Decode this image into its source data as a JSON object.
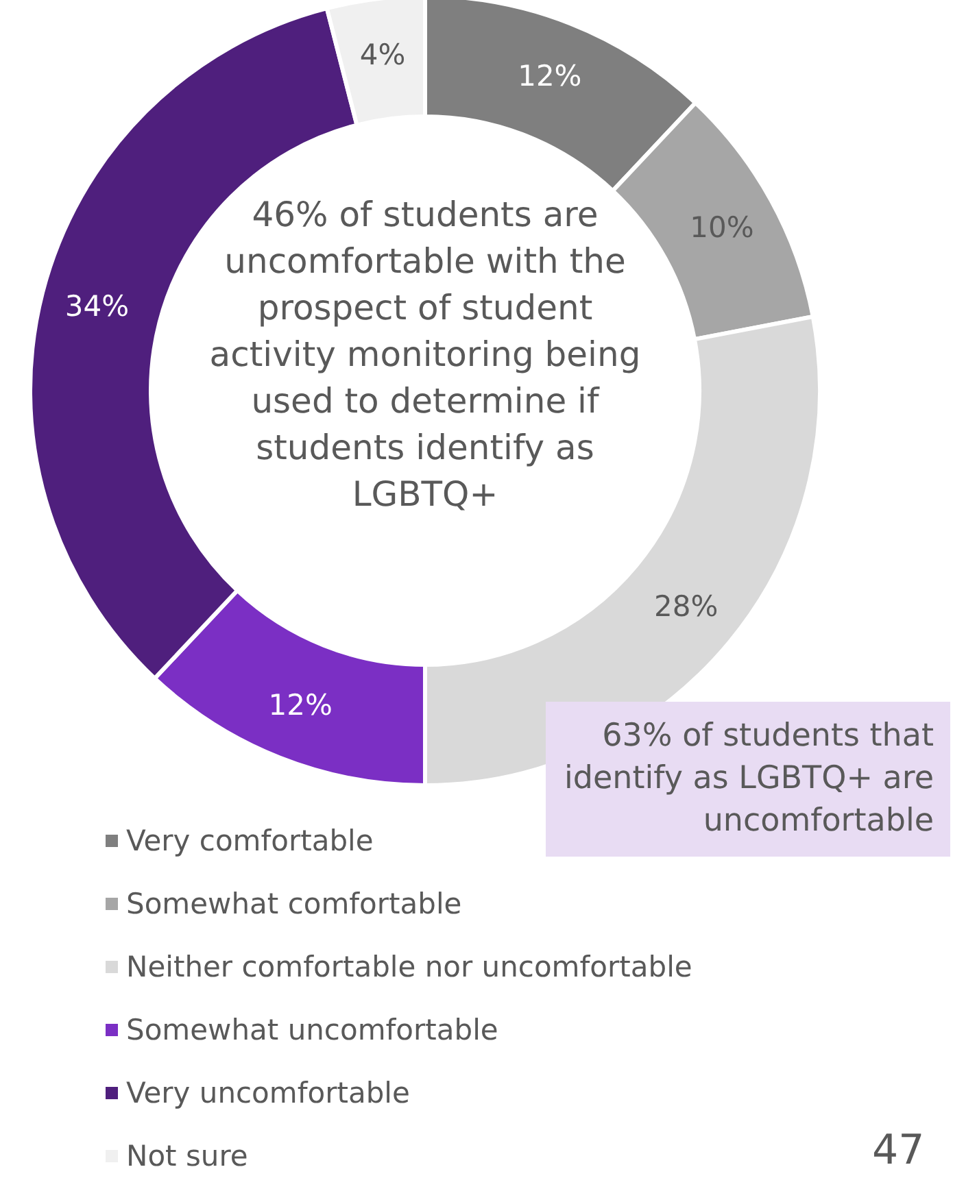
{
  "chart_data": {
    "type": "donut",
    "categories": [
      "Very comfortable",
      "Somewhat comfortable",
      "Neither comfortable nor uncomfortable",
      "Somewhat uncomfortable",
      "Very uncomfortable",
      "Not sure"
    ],
    "values": [
      12,
      10,
      28,
      12,
      34,
      4
    ],
    "value_labels": [
      "12%",
      "10%",
      "28%",
      "12%",
      "34%",
      "4%"
    ],
    "colors": [
      "#7f7f7f",
      "#a6a6a6",
      "#d9d9d9",
      "#7b2fc4",
      "#4f1f7d",
      "#f0f0f0"
    ],
    "legend": "bottom left",
    "annotations": [
      "46% of students are uncomfortable with the prospect of student activity monitoring being used to determine if students identify as LGBTQ+",
      "63% of students that identify as LGBTQ+ are uncomfortable",
      "47"
    ]
  }
}
